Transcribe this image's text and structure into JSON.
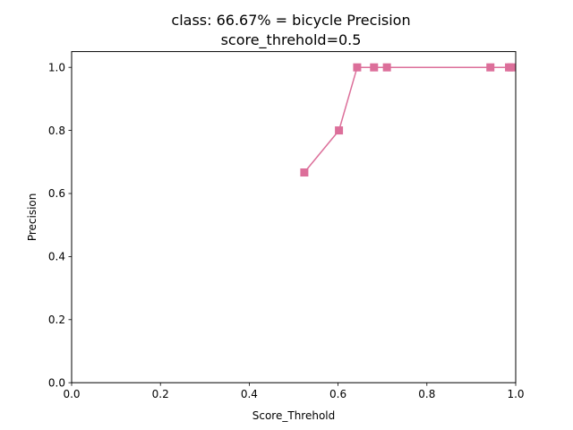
{
  "chart_data": {
    "type": "line",
    "title": "class: 66.67% = bicycle Precision",
    "subtitle": "score_threhold=0.5",
    "xlabel": "Score_Threhold",
    "ylabel": "Precision",
    "xlim": [
      0.0,
      1.0
    ],
    "ylim": [
      0.0,
      1.05
    ],
    "xticks": [
      "0.0",
      "0.2",
      "0.4",
      "0.6",
      "0.8",
      "1.0"
    ],
    "yticks": [
      "0.0",
      "0.2",
      "0.4",
      "0.6",
      "0.8",
      "1.0"
    ],
    "grid": false,
    "legend": "none",
    "series": [
      {
        "color": "#dc6f9a",
        "marker": "square",
        "x": [
          0.524,
          0.602,
          0.643,
          0.681,
          0.71,
          0.943,
          0.985,
          0.99
        ],
        "y": [
          0.6667,
          0.8,
          1.0,
          1.0,
          1.0,
          1.0,
          1.0,
          1.0
        ]
      }
    ]
  }
}
